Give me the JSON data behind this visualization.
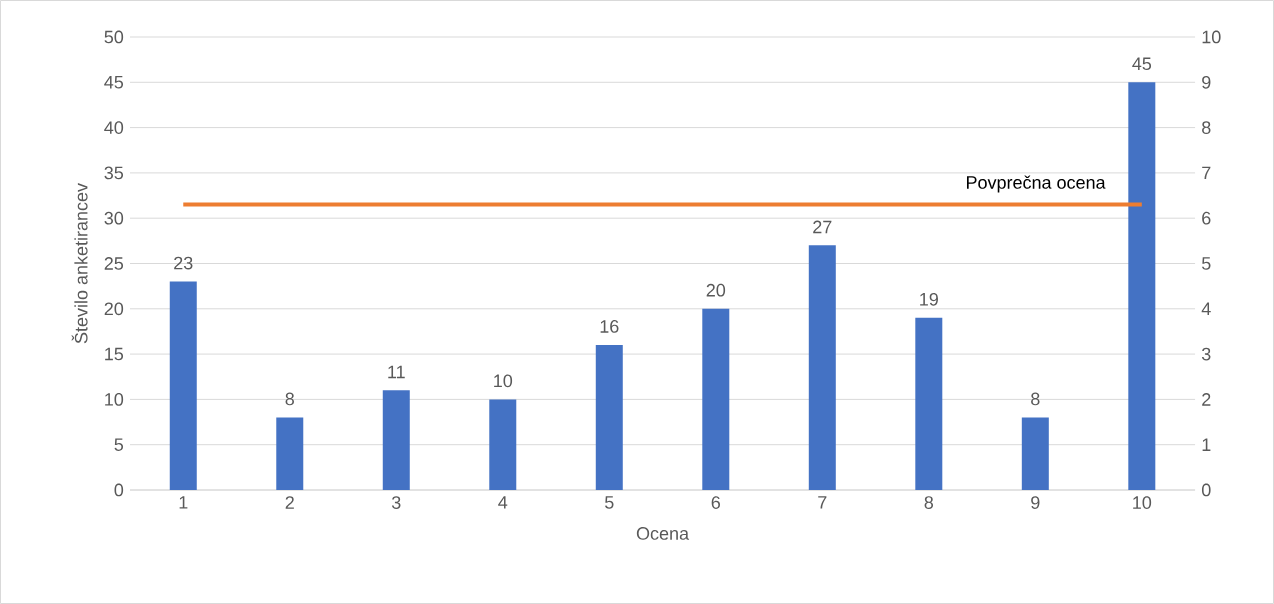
{
  "chart_data": {
    "type": "bar",
    "xlabel": "Ocena",
    "ylabel": "Število anketirancev",
    "categories": [
      "1",
      "2",
      "3",
      "4",
      "5",
      "6",
      "7",
      "8",
      "9",
      "10"
    ],
    "series": [
      {
        "color": "#4472c4",
        "values": [
          23,
          8,
          11,
          10,
          16,
          20,
          27,
          19,
          8,
          45
        ],
        "data_labels": true
      },
      {
        "type": "line",
        "name": "Povprečna ocena",
        "color": "#ed7d31",
        "axis": "y2",
        "values": [
          6.3,
          6.3,
          6.3,
          6.3,
          6.3,
          6.3,
          6.3,
          6.3,
          6.3,
          6.3
        ]
      }
    ],
    "ylim": [
      0,
      50
    ],
    "yticks": [
      0,
      5,
      10,
      15,
      20,
      25,
      30,
      35,
      40,
      45,
      50
    ],
    "y2lim": [
      0,
      10
    ],
    "y2ticks": [
      0,
      1,
      2,
      3,
      4,
      5,
      6,
      7,
      8,
      9,
      10
    ],
    "grid": "y"
  }
}
